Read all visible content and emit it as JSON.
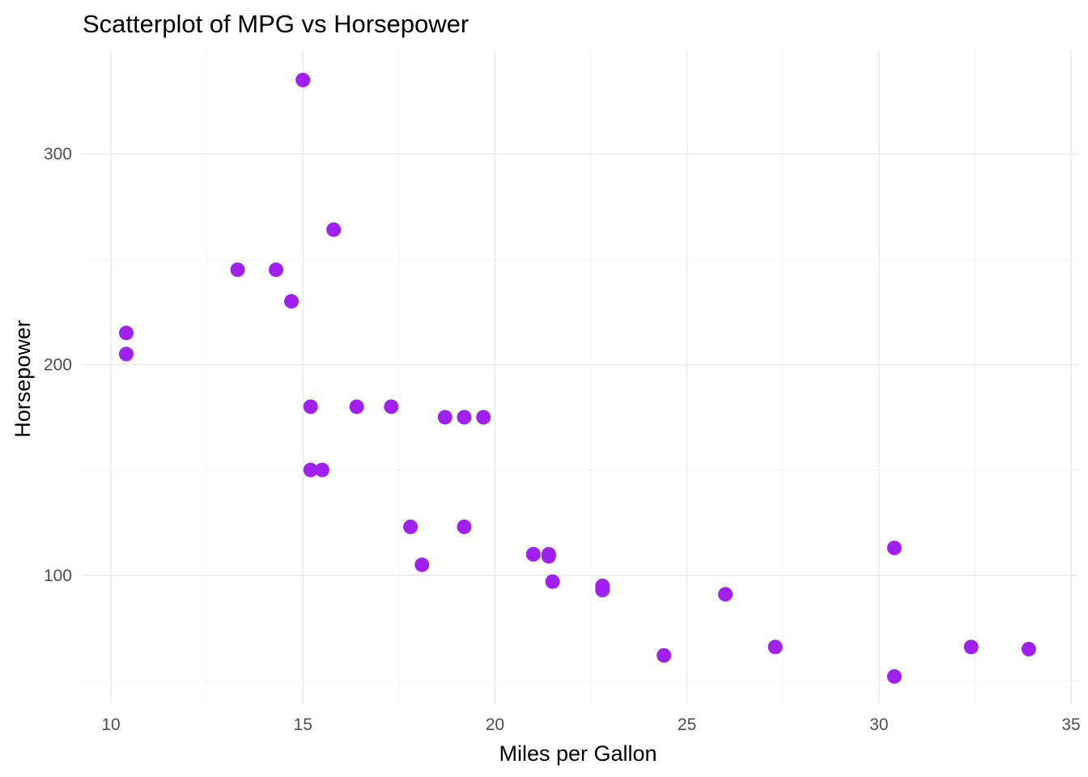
{
  "chart_data": {
    "type": "scatter",
    "title": "Scatterplot of MPG vs Horsepower",
    "xlabel": "Miles per Gallon",
    "ylabel": "Horsepower",
    "xlim": [
      10,
      35
    ],
    "ylim": [
      50,
      335
    ],
    "x_ticks": [
      10,
      15,
      20,
      25,
      30,
      35
    ],
    "y_ticks": [
      100,
      200,
      300
    ],
    "grid": true,
    "legend": "none",
    "point_color": "#A020F0",
    "points": [
      {
        "x": 21.0,
        "y": 110
      },
      {
        "x": 21.0,
        "y": 110
      },
      {
        "x": 22.8,
        "y": 93
      },
      {
        "x": 21.4,
        "y": 110
      },
      {
        "x": 18.7,
        "y": 175
      },
      {
        "x": 18.1,
        "y": 105
      },
      {
        "x": 14.3,
        "y": 245
      },
      {
        "x": 24.4,
        "y": 62
      },
      {
        "x": 22.8,
        "y": 95
      },
      {
        "x": 19.2,
        "y": 123
      },
      {
        "x": 17.8,
        "y": 123
      },
      {
        "x": 16.4,
        "y": 180
      },
      {
        "x": 17.3,
        "y": 180
      },
      {
        "x": 15.2,
        "y": 180
      },
      {
        "x": 10.4,
        "y": 205
      },
      {
        "x": 10.4,
        "y": 215
      },
      {
        "x": 14.7,
        "y": 230
      },
      {
        "x": 32.4,
        "y": 66
      },
      {
        "x": 30.4,
        "y": 52
      },
      {
        "x": 33.9,
        "y": 65
      },
      {
        "x": 21.5,
        "y": 97
      },
      {
        "x": 15.5,
        "y": 150
      },
      {
        "x": 15.2,
        "y": 150
      },
      {
        "x": 13.3,
        "y": 245
      },
      {
        "x": 19.2,
        "y": 175
      },
      {
        "x": 27.3,
        "y": 66
      },
      {
        "x": 26.0,
        "y": 91
      },
      {
        "x": 30.4,
        "y": 113
      },
      {
        "x": 15.8,
        "y": 264
      },
      {
        "x": 19.7,
        "y": 175
      },
      {
        "x": 15.0,
        "y": 335
      },
      {
        "x": 21.4,
        "y": 109
      }
    ]
  }
}
